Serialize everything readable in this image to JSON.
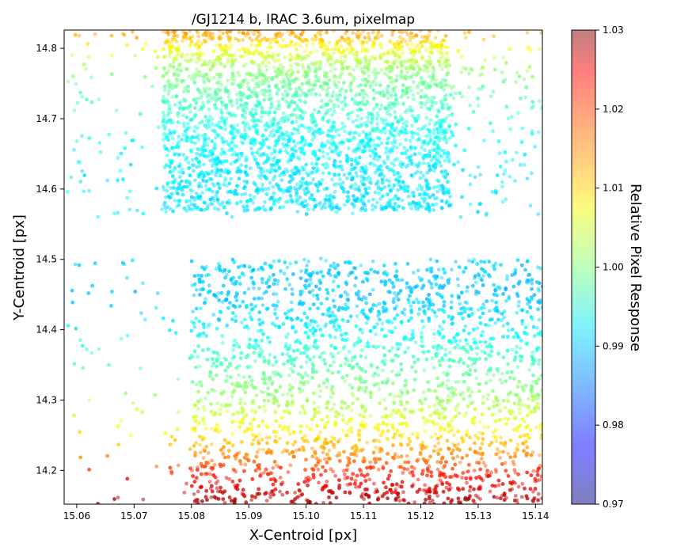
{
  "chart_data": {
    "type": "scatter",
    "title": "/GJ1214 b, IRAC 3.6um, pixelmap",
    "xlabel": "X-Centroid [px]",
    "ylabel": "Y-Centroid [px]",
    "xlim": [
      15.0578,
      15.1412
    ],
    "ylim": [
      14.152,
      14.826
    ],
    "xticks": [
      15.06,
      15.07,
      15.08,
      15.09,
      15.1,
      15.11,
      15.12,
      15.13,
      15.14
    ],
    "xtick_labels": [
      "15.06",
      "15.07",
      "15.08",
      "15.09",
      "15.10",
      "15.11",
      "15.12",
      "15.13",
      "15.14"
    ],
    "yticks": [
      14.2,
      14.3,
      14.4,
      14.5,
      14.6,
      14.7,
      14.8
    ],
    "ytick_labels": [
      "14.2",
      "14.3",
      "14.4",
      "14.5",
      "14.6",
      "14.7",
      "14.8"
    ],
    "grid": false,
    "colormap": "jet",
    "marker_alpha": 0.5,
    "colorbar": {
      "label": "Relative Pixel Response",
      "range": [
        0.97,
        1.03
      ],
      "ticks": [
        0.97,
        0.98,
        0.99,
        1.0,
        1.01,
        1.02,
        1.03
      ],
      "tick_labels": [
        "0.97",
        "0.98",
        "0.99",
        "1.00",
        "1.01",
        "1.02",
        "1.03"
      ]
    },
    "clusters": [
      {
        "x_range": [
          15.058,
          15.1412
        ],
        "y_range": [
          14.56,
          14.826
        ],
        "core_x_range": [
          15.075,
          15.125
        ],
        "core_y_range": [
          14.57,
          14.826
        ],
        "response_trend": [
          {
            "y": 14.82,
            "response": 1.013
          },
          {
            "y": 14.8,
            "response": 1.007
          },
          {
            "y": 14.77,
            "response": 1.001
          },
          {
            "y": 14.73,
            "response": 0.997
          },
          {
            "y": 14.68,
            "response": 0.993
          },
          {
            "y": 14.62,
            "response": 0.991
          },
          {
            "y": 14.57,
            "response": 0.991
          }
        ]
      },
      {
        "x_range": [
          15.058,
          15.1412
        ],
        "y_range": [
          14.152,
          14.502
        ],
        "core_x_range": [
          15.08,
          15.1412
        ],
        "core_y_range": [
          14.152,
          14.5
        ],
        "response_trend": [
          {
            "y": 14.5,
            "response": 0.99
          },
          {
            "y": 14.45,
            "response": 0.989
          },
          {
            "y": 14.4,
            "response": 0.992
          },
          {
            "y": 14.35,
            "response": 0.997
          },
          {
            "y": 14.3,
            "response": 1.002
          },
          {
            "y": 14.25,
            "response": 1.009
          },
          {
            "y": 14.22,
            "response": 1.015
          },
          {
            "y": 14.19,
            "response": 1.022
          },
          {
            "y": 14.16,
            "response": 1.027
          }
        ]
      }
    ]
  }
}
